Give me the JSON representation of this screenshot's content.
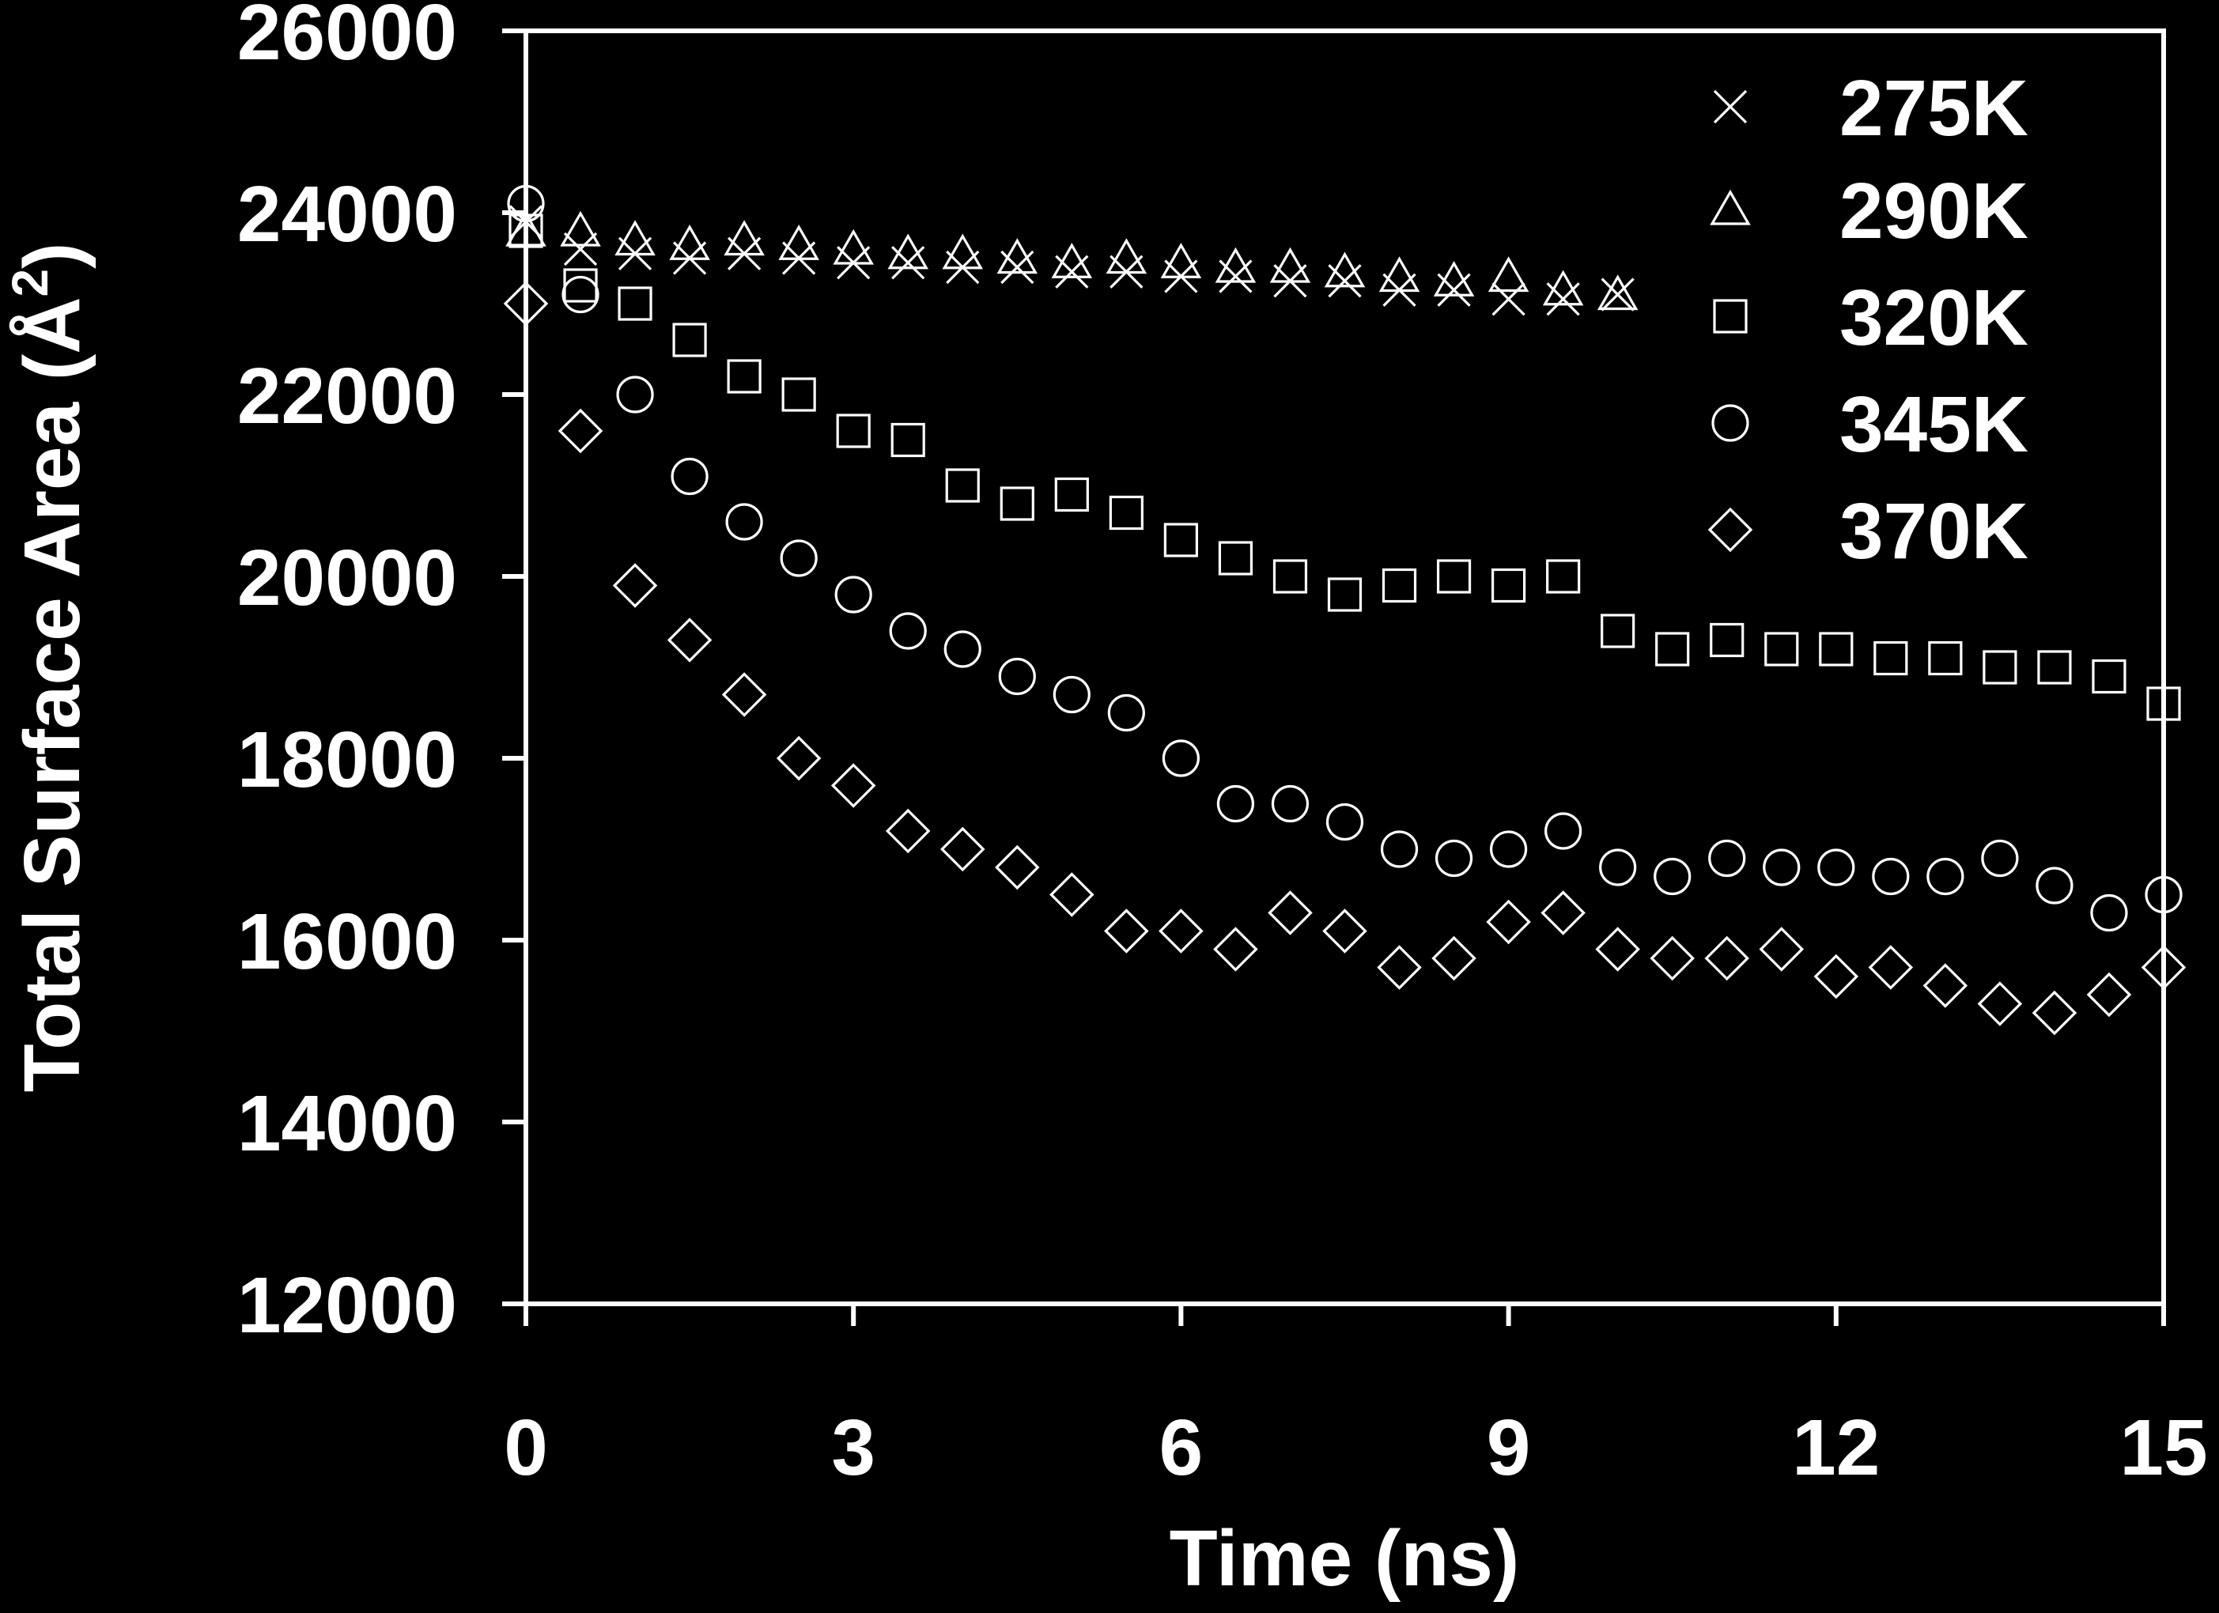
{
  "chart_data": {
    "type": "scatter",
    "title": "",
    "xlabel": "Time (ns)",
    "ylabel": "Total Surface Area (Å",
    "ylabel_sup": "2",
    "ylabel_end": ")",
    "xlim": [
      0,
      15
    ],
    "ylim": [
      12000,
      26000
    ],
    "x_ticks": [
      0,
      3,
      6,
      9,
      12,
      15
    ],
    "x_tick_labels": [
      "0",
      "3",
      "6",
      "9",
      "12",
      "15"
    ],
    "y_ticks": [
      12000,
      14000,
      16000,
      18000,
      20000,
      22000,
      24000,
      26000
    ],
    "y_tick_labels": [
      "12000",
      "14000",
      "16000",
      "18000",
      "20000",
      "22000",
      "24000",
      "26000"
    ],
    "grid": false,
    "legend_position": "top-right",
    "series": [
      {
        "name": "275K",
        "marker": "x",
        "x": [
          0,
          0.5,
          1,
          1.5,
          2,
          2.5,
          3,
          3.5,
          4,
          4.5,
          5,
          5.5,
          6,
          6.5,
          7,
          7.5,
          8,
          8.5,
          9,
          9.5,
          10
        ],
        "y": [
          23900,
          23600,
          23550,
          23500,
          23550,
          23500,
          23450,
          23450,
          23400,
          23400,
          23350,
          23350,
          23300,
          23300,
          23250,
          23250,
          23150,
          23150,
          23050,
          23050,
          23100
        ]
      },
      {
        "name": "290K",
        "marker": "triangle",
        "x": [
          0,
          0.5,
          1,
          1.5,
          2,
          2.5,
          3,
          3.5,
          4,
          4.5,
          5,
          5.5,
          6,
          6.5,
          7,
          7.5,
          8,
          8.5,
          9,
          9.5,
          10
        ],
        "y": [
          23800,
          23800,
          23700,
          23650,
          23700,
          23650,
          23600,
          23550,
          23550,
          23500,
          23450,
          23500,
          23450,
          23400,
          23400,
          23350,
          23300,
          23250,
          23300,
          23150,
          23100
        ]
      },
      {
        "name": "320K",
        "marker": "square",
        "x": [
          0,
          0.5,
          1,
          1.5,
          2,
          2.5,
          3,
          3.5,
          4,
          4.5,
          5,
          5.5,
          6,
          6.5,
          7,
          7.5,
          8,
          8.5,
          9,
          9.5,
          10,
          10.5,
          11,
          11.5,
          12,
          12.5,
          13,
          13.5,
          14,
          14.5,
          15
        ],
        "y": [
          23800,
          23200,
          23000,
          22600,
          22200,
          22000,
          21600,
          21500,
          21000,
          20800,
          20900,
          20700,
          20400,
          20200,
          20000,
          19800,
          19900,
          20000,
          19900,
          20000,
          19400,
          19200,
          19300,
          19200,
          19200,
          19100,
          19100,
          19000,
          19000,
          18900,
          18600
        ]
      },
      {
        "name": "345K",
        "marker": "circle",
        "x": [
          0,
          0.5,
          1,
          1.5,
          2,
          2.5,
          3,
          3.5,
          4,
          4.5,
          5,
          5.5,
          6,
          6.5,
          7,
          7.5,
          8,
          8.5,
          9,
          9.5,
          10,
          10.5,
          11,
          11.5,
          12,
          12.5,
          13,
          13.5,
          14,
          14.5,
          15
        ],
        "y": [
          24100,
          23100,
          22000,
          21100,
          20600,
          20200,
          19800,
          19400,
          19200,
          18900,
          18700,
          18500,
          18000,
          17500,
          17500,
          17300,
          17000,
          16900,
          17000,
          17200,
          16800,
          16700,
          16900,
          16800,
          16800,
          16700,
          16700,
          16900,
          16600,
          16300,
          16500
        ]
      },
      {
        "name": "370K",
        "marker": "diamond",
        "x": [
          0,
          0.5,
          1,
          1.5,
          2,
          2.5,
          3,
          3.5,
          4,
          4.5,
          5,
          5.5,
          6,
          6.5,
          7,
          7.5,
          8,
          8.5,
          9,
          9.5,
          10,
          10.5,
          11,
          11.5,
          12,
          12.5,
          13,
          13.5,
          14,
          14.5,
          15
        ],
        "y": [
          23000,
          21600,
          19900,
          19300,
          18700,
          18000,
          17700,
          17200,
          17000,
          16800,
          16500,
          16100,
          16100,
          15900,
          16300,
          16100,
          15700,
          15800,
          16200,
          16300,
          15900,
          15800,
          15800,
          15900,
          15600,
          15700,
          15500,
          15300,
          15200,
          15400,
          15700
        ]
      }
    ]
  }
}
